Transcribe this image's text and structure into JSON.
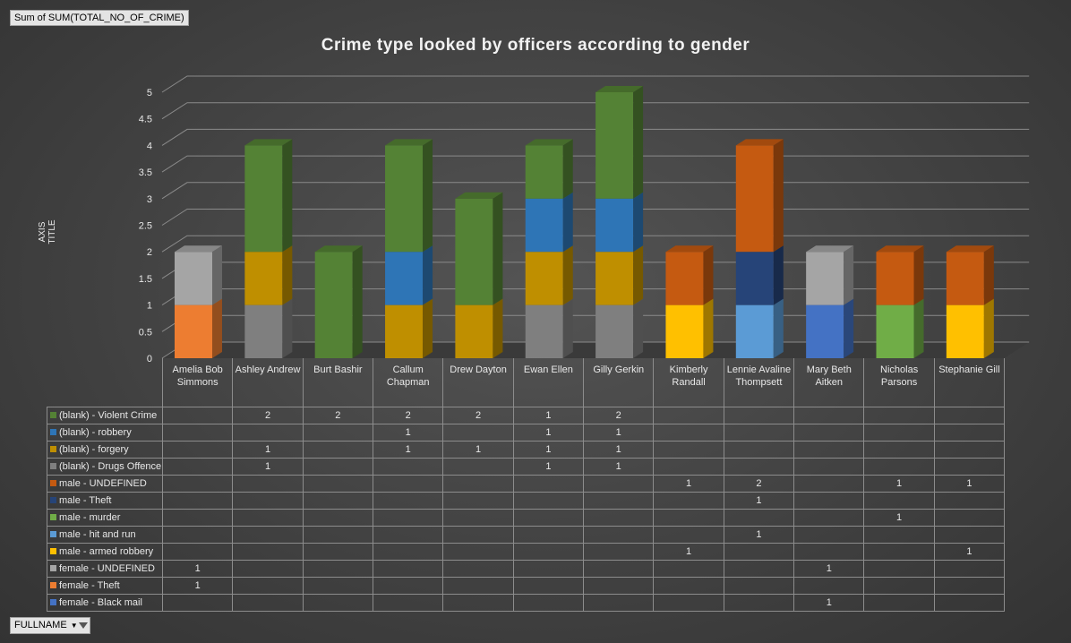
{
  "ui": {
    "value_field": "Sum of SUM(TOTAL_NO_OF_CRIME)",
    "axis_field": "FULLNAME",
    "background": "#444444"
  },
  "chart_data": {
    "type": "bar",
    "stacked": true,
    "title": "Crime type looked by officers according to gender",
    "xlabel": "",
    "ylabel": "AXIS TITLE",
    "ylim": [
      0,
      5
    ],
    "yticks": [
      "0",
      "0.5",
      "1",
      "1.5",
      "2",
      "2.5",
      "3",
      "3.5",
      "4",
      "4.5",
      "5"
    ],
    "grid": true,
    "legend": "data-table",
    "categories": [
      "Amelia Bob Simmons",
      "Ashley Andrew",
      "Burt Bashir",
      "Callum Chapman",
      "Drew Dayton",
      "Ewan Ellen",
      "Gilly Gerkin",
      "Kimberly Randall",
      "Lennie Avaline Thompsett",
      "Mary Beth Aitken",
      "Nicholas Parsons",
      "Stephanie Gill"
    ],
    "series": [
      {
        "name": "(blank) - Violent Crime",
        "color": "#548235",
        "values": [
          null,
          2,
          2,
          2,
          2,
          1,
          2,
          null,
          null,
          null,
          null,
          null
        ]
      },
      {
        "name": "(blank) - robbery",
        "color": "#2e75b6",
        "values": [
          null,
          null,
          null,
          1,
          null,
          1,
          1,
          null,
          null,
          null,
          null,
          null
        ]
      },
      {
        "name": "(blank) - forgery",
        "color": "#bf8f00",
        "values": [
          null,
          1,
          null,
          1,
          1,
          1,
          1,
          null,
          null,
          null,
          null,
          null
        ]
      },
      {
        "name": "(blank) - Drugs Offence",
        "color": "#7f7f7f",
        "values": [
          null,
          1,
          null,
          null,
          null,
          1,
          1,
          null,
          null,
          null,
          null,
          null
        ]
      },
      {
        "name": "male - UNDEFINED",
        "color": "#c55a11",
        "values": [
          null,
          null,
          null,
          null,
          null,
          null,
          null,
          1,
          2,
          null,
          1,
          1
        ]
      },
      {
        "name": "male - Theft",
        "color": "#264478",
        "values": [
          null,
          null,
          null,
          null,
          null,
          null,
          null,
          null,
          1,
          null,
          null,
          null
        ]
      },
      {
        "name": "male - murder",
        "color": "#70ad47",
        "values": [
          null,
          null,
          null,
          null,
          null,
          null,
          null,
          null,
          null,
          null,
          1,
          null
        ]
      },
      {
        "name": "male - hit and run",
        "color": "#5b9bd5",
        "values": [
          null,
          null,
          null,
          null,
          null,
          null,
          null,
          null,
          1,
          null,
          null,
          null
        ]
      },
      {
        "name": "male - armed robbery",
        "color": "#ffc000",
        "values": [
          null,
          null,
          null,
          null,
          null,
          null,
          null,
          1,
          null,
          null,
          null,
          1
        ]
      },
      {
        "name": "female - UNDEFINED",
        "color": "#a5a5a5",
        "values": [
          1,
          null,
          null,
          null,
          null,
          null,
          null,
          null,
          null,
          1,
          null,
          null
        ]
      },
      {
        "name": "female - Theft",
        "color": "#ed7d31",
        "values": [
          1,
          null,
          null,
          null,
          null,
          null,
          null,
          null,
          null,
          null,
          null,
          null
        ]
      },
      {
        "name": "female - Black mail",
        "color": "#4472c4",
        "values": [
          null,
          null,
          null,
          null,
          null,
          null,
          null,
          null,
          null,
          1,
          null,
          null
        ]
      }
    ]
  }
}
